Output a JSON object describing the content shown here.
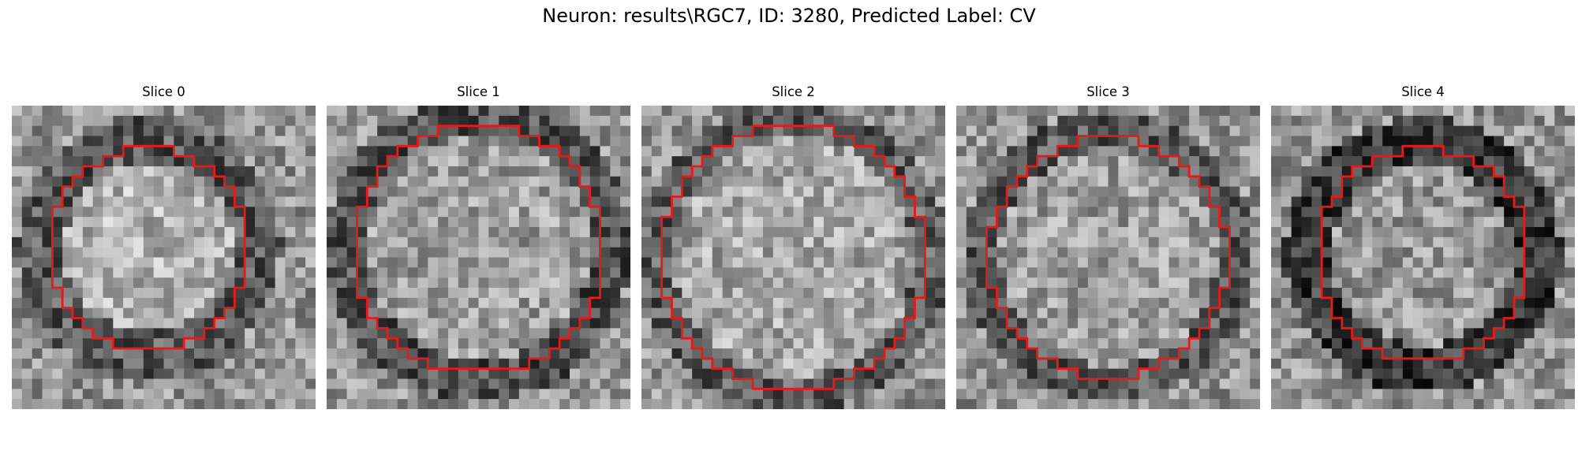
{
  "figure": {
    "title": "Neuron: results\\RGC7, ID: 3280, Predicted Label: CV"
  },
  "colors": {
    "contour": "#e41a1c",
    "background": "#ffffff"
  },
  "panels": [
    {
      "title": "Slice 0",
      "seed": 11,
      "center": [
        0.45,
        0.47
      ],
      "radius": 0.35,
      "ring_width": 0.14,
      "ring_darkness": 0.35,
      "inner_brightness": 0.7
    },
    {
      "title": "Slice 1",
      "seed": 23,
      "center": [
        0.5,
        0.47
      ],
      "radius": 0.43,
      "ring_width": 0.12,
      "ring_darkness": 0.32,
      "inner_brightness": 0.62
    },
    {
      "title": "Slice 2",
      "seed": 37,
      "center": [
        0.5,
        0.5
      ],
      "radius": 0.45,
      "ring_width": 0.1,
      "ring_darkness": 0.36,
      "inner_brightness": 0.66
    },
    {
      "title": "Slice 3",
      "seed": 49,
      "center": [
        0.5,
        0.5
      ],
      "radius": 0.41,
      "ring_width": 0.11,
      "ring_darkness": 0.35,
      "inner_brightness": 0.62
    },
    {
      "title": "Slice 4",
      "seed": 61,
      "center": [
        0.5,
        0.49
      ],
      "radius": 0.37,
      "ring_width": 0.14,
      "ring_darkness": 0.22,
      "inner_brightness": 0.6
    }
  ]
}
